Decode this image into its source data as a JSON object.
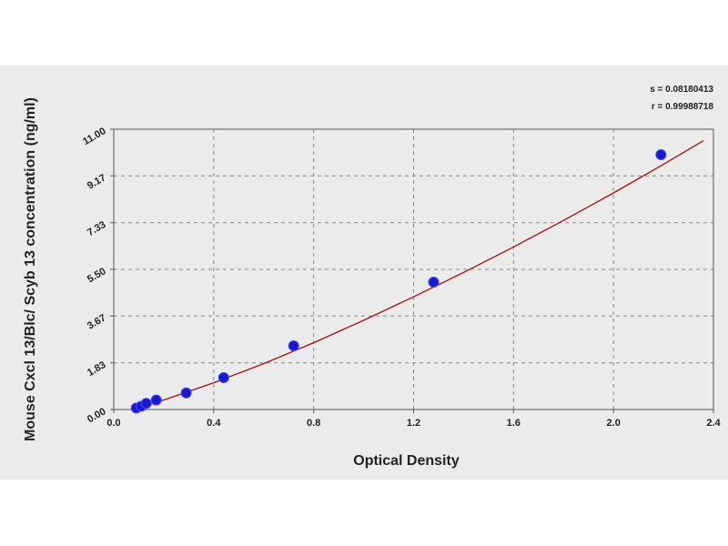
{
  "chart_data": {
    "type": "scatter",
    "title": "",
    "xlabel": "Optical Density",
    "ylabel": "Mouse Cxcl 13/Blc/ Scyb 13 concentration (ng/ml)",
    "xlim": [
      0.0,
      2.4
    ],
    "ylim": [
      0.0,
      11.0
    ],
    "x_ticks": [
      "0.0",
      "0.4",
      "0.8",
      "1.2",
      "1.6",
      "2.0",
      "2.4"
    ],
    "y_ticks": [
      "0.00",
      "1.83",
      "3.67",
      "5.50",
      "7.33",
      "9.17",
      "11.00"
    ],
    "grid": true,
    "stats": {
      "s_label": "s = 0.08180413",
      "r_label": "r = 0.99988718"
    },
    "series": [
      {
        "values_x": [
          0.09,
          0.11,
          0.13,
          0.17,
          0.29,
          0.44,
          0.72,
          1.28,
          2.19
        ],
        "values_y": [
          0.06,
          0.13,
          0.24,
          0.37,
          0.65,
          1.25,
          2.5,
          5.0,
          10.0
        ],
        "color": "#1a1acc"
      }
    ],
    "fit_curve": {
      "color": "#a01010",
      "x": [
        0.08,
        0.2,
        0.4,
        0.6,
        0.8,
        1.0,
        1.2,
        1.4,
        1.6,
        1.8,
        2.0,
        2.2,
        2.36
      ],
      "y": [
        0.0,
        0.37,
        1.05,
        1.8,
        2.62,
        3.5,
        4.42,
        5.38,
        6.38,
        7.42,
        8.5,
        9.62,
        10.55
      ]
    }
  }
}
